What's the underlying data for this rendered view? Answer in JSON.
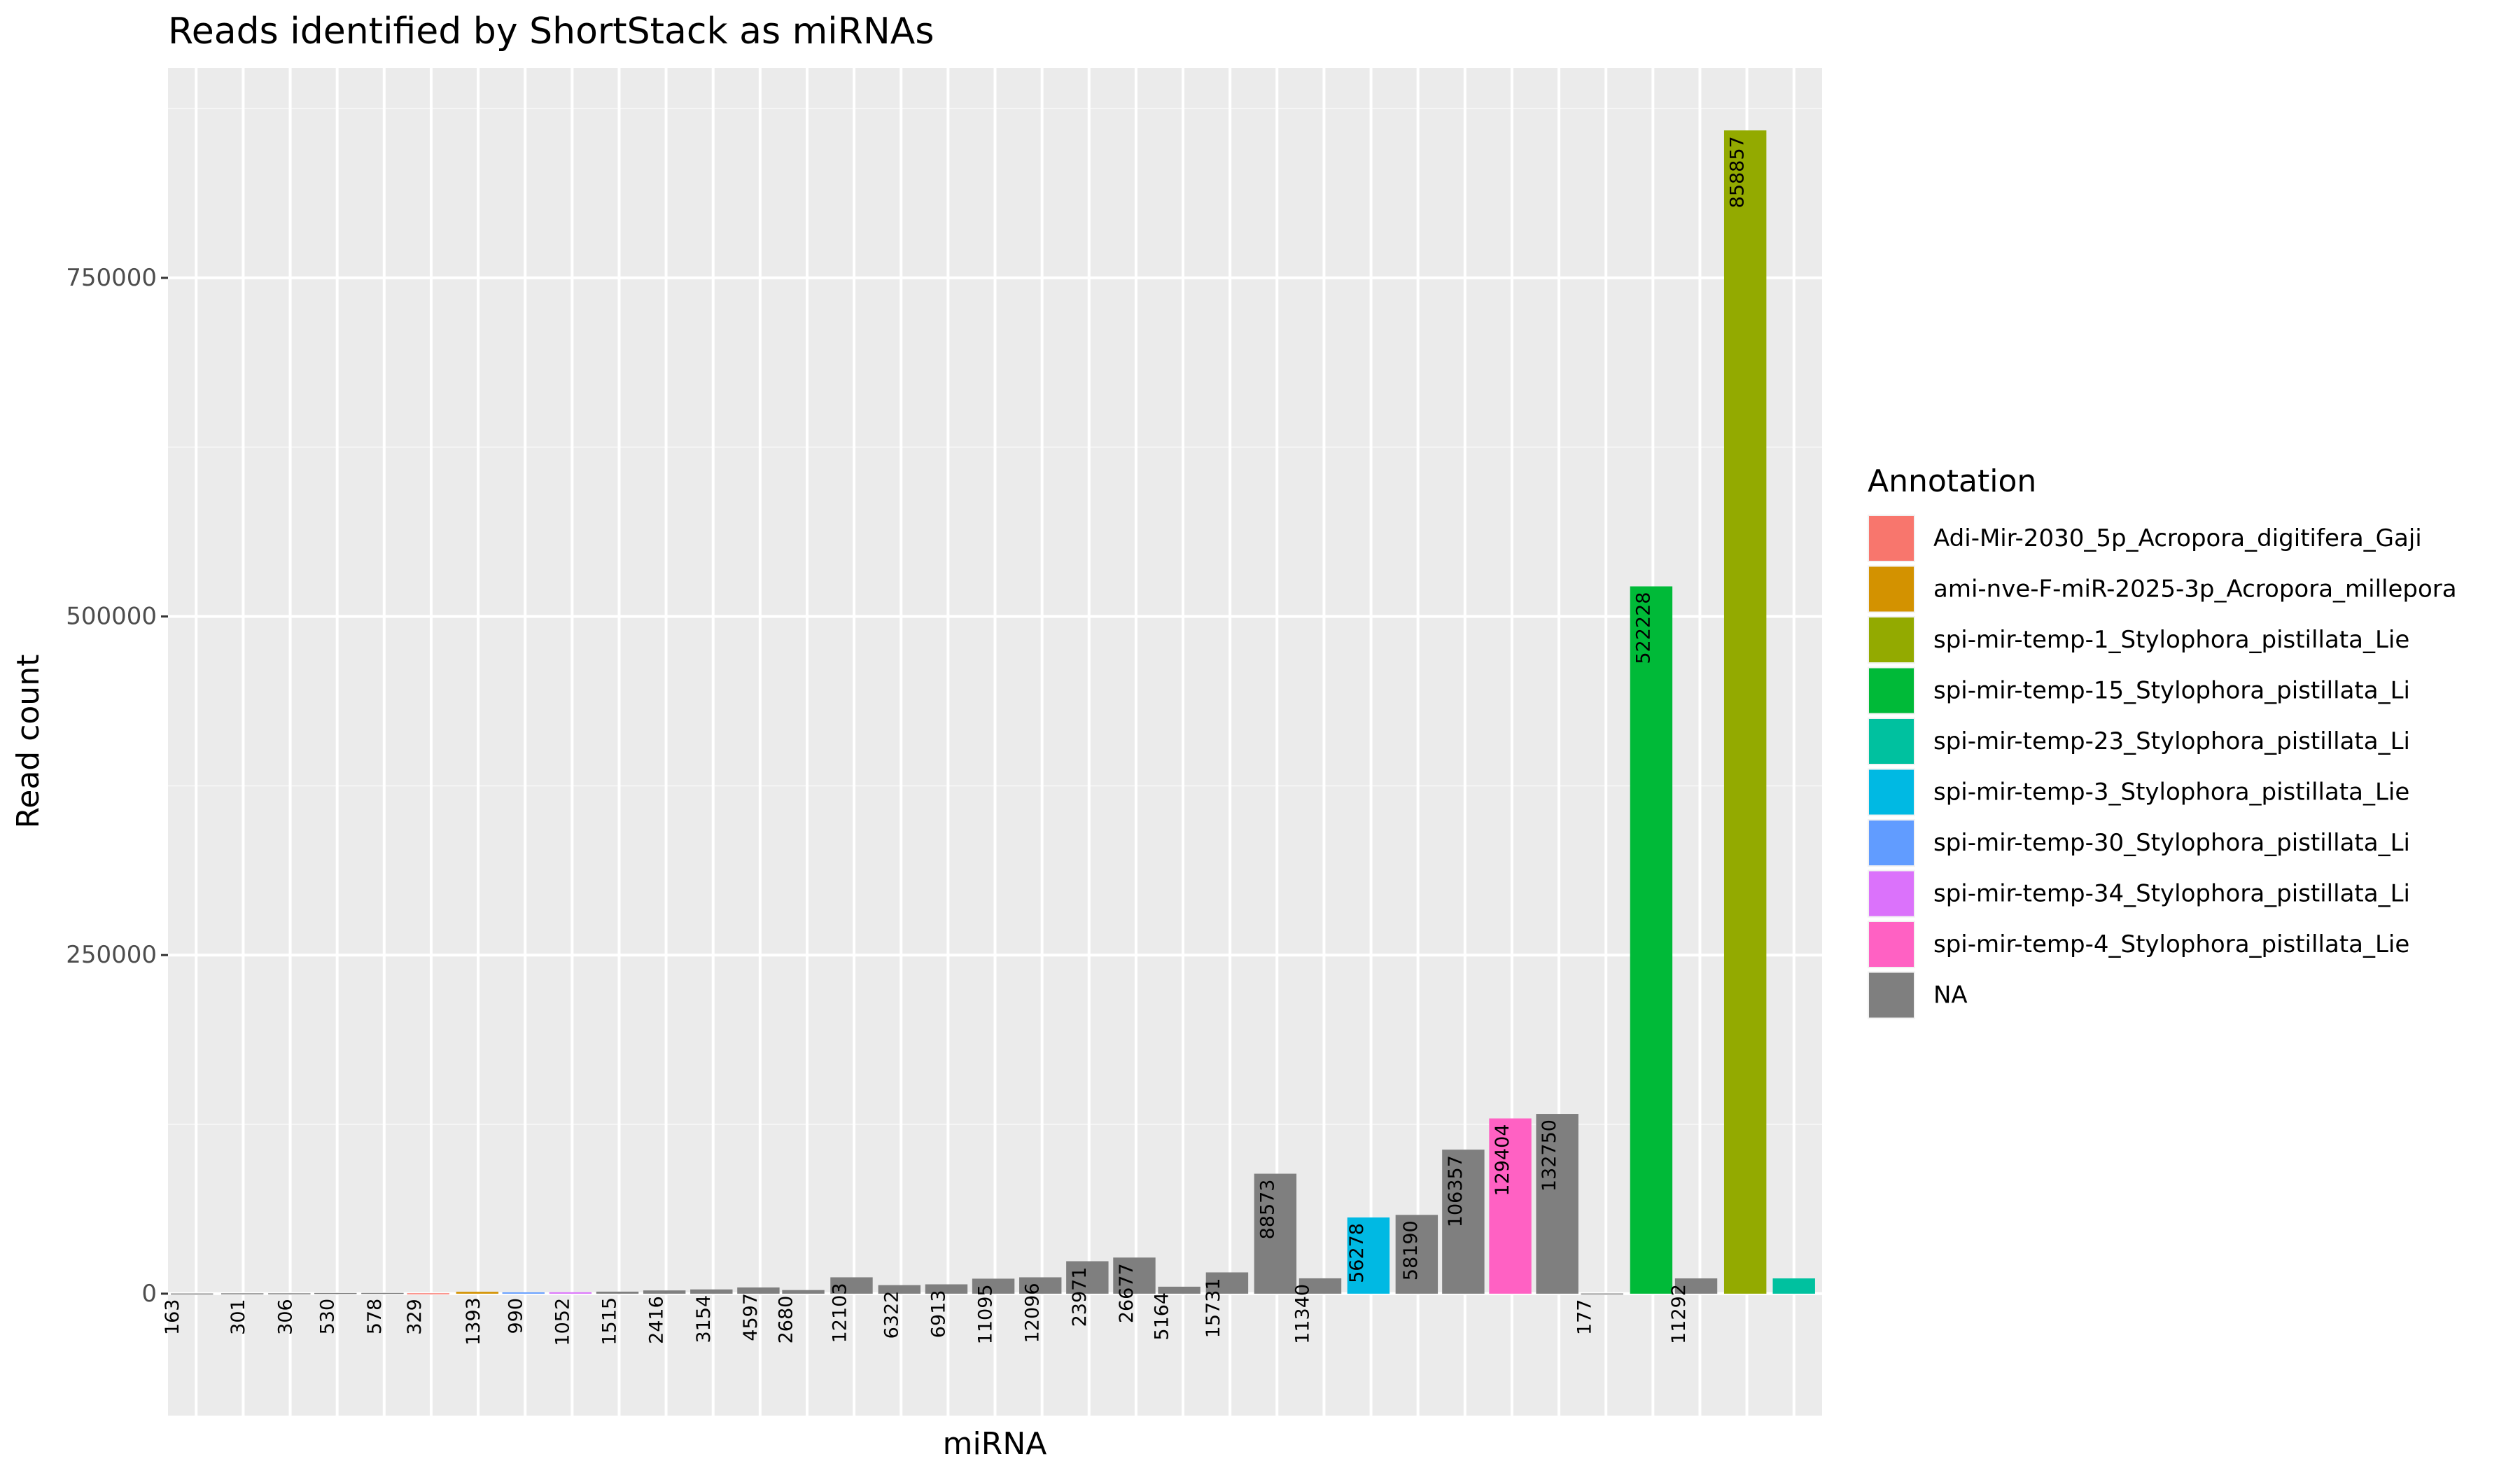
{
  "chart_data": {
    "type": "bar",
    "title": "Reads identified by ShortStack as miRNAs",
    "xlabel": "miRNA",
    "ylabel": "Read count",
    "ylim": [
      -90000,
      905000
    ],
    "yticks": [
      0,
      250000,
      500000,
      750000
    ],
    "ytick_labels": [
      "0",
      "250000",
      "500000",
      "750000"
    ],
    "legend": {
      "title": "Annotation",
      "position": "right",
      "entries": [
        {
          "name": "Adi-Mir-2030_5p_Acropora_digitifera_Gaji",
          "color": "#F8766D"
        },
        {
          "name": "ami-nve-F-miR-2025-3p_Acropora_millepora",
          "color": "#D39200"
        },
        {
          "name": "spi-mir-temp-1_Stylophora_pistillata_Lie",
          "color": "#93AA00"
        },
        {
          "name": "spi-mir-temp-15_Stylophora_pistillata_Li",
          "color": "#00BA38"
        },
        {
          "name": "spi-mir-temp-23_Stylophora_pistillata_Li",
          "color": "#00C19F"
        },
        {
          "name": "spi-mir-temp-3_Stylophora_pistillata_Lie",
          "color": "#00B9E3"
        },
        {
          "name": "spi-mir-temp-30_Stylophora_pistillata_Li",
          "color": "#619CFF"
        },
        {
          "name": "spi-mir-temp-34_Stylophora_pistillata_Li",
          "color": "#DB72FB"
        },
        {
          "name": "spi-mir-temp-4_Stylophora_pistillata_Lie",
          "color": "#FF61C3"
        },
        {
          "name": "NA",
          "color": "#7F7F7F"
        }
      ]
    },
    "bars": [
      {
        "value": 163,
        "label": "163",
        "annotation": "NA",
        "offset": -0.5
      },
      {
        "value": 301,
        "label": "301",
        "annotation": "NA",
        "offset": -0.1
      },
      {
        "value": 306,
        "label": "306",
        "annotation": "NA",
        "offset": -0.1
      },
      {
        "value": 530,
        "label": "530",
        "annotation": "NA",
        "offset": -0.2
      },
      {
        "value": 578,
        "label": "578",
        "annotation": "NA",
        "offset": -0.2
      },
      {
        "value": 329,
        "label": "329",
        "annotation": "Adi-Mir-2030_5p_Acropora_digitifera_Gaji",
        "offset": -0.35
      },
      {
        "value": 1393,
        "label": "1393",
        "annotation": "ami-nve-F-miR-2025-3p_Acropora_millepora",
        "offset": -0.1
      },
      {
        "value": 990,
        "label": "990",
        "annotation": "spi-mir-temp-30_Stylophora_pistillata_Li",
        "offset": -0.2
      },
      {
        "value": 1052,
        "label": "1052",
        "annotation": "spi-mir-temp-34_Stylophora_pistillata_Li",
        "offset": -0.2
      },
      {
        "value": 1515,
        "label": "1515",
        "annotation": "NA",
        "offset": -0.2
      },
      {
        "value": 2416,
        "label": "2416",
        "annotation": "NA",
        "offset": -0.2
      },
      {
        "value": 3154,
        "label": "3154",
        "annotation": "NA",
        "offset": -0.2
      },
      {
        "value": 4597,
        "label": "4597",
        "annotation": "NA",
        "offset": -0.2
      },
      {
        "value": 2680,
        "label": "2680",
        "annotation": "NA",
        "offset": -0.45
      },
      {
        "value": 12103,
        "label": "12103",
        "annotation": "NA",
        "offset": -0.3
      },
      {
        "value": 6322,
        "label": "6322",
        "annotation": "NA",
        "offset": -0.2
      },
      {
        "value": 6913,
        "label": "6913",
        "annotation": "NA",
        "offset": -0.2
      },
      {
        "value": 11095,
        "label": "11095",
        "annotation": "NA",
        "offset": -0.2
      },
      {
        "value": 12096,
        "label": "12096",
        "annotation": "NA",
        "offset": -0.2
      },
      {
        "value": 23971,
        "label": "23971",
        "annotation": "NA",
        "offset": -0.2
      },
      {
        "value": 26677,
        "label": "26677",
        "annotation": "NA",
        "offset": -0.2
      },
      {
        "value": 5164,
        "label": "5164",
        "annotation": "NA",
        "offset": -0.45
      },
      {
        "value": 15731,
        "label": "15731",
        "annotation": "NA",
        "offset": -0.35
      },
      {
        "value": 88573,
        "label": "88573",
        "annotation": "NA",
        "offset": -0.2
      },
      {
        "value": 11340,
        "label": "11340",
        "annotation": "NA",
        "offset": -0.45
      },
      {
        "value": 56278,
        "label": "56278",
        "annotation": "spi-mir-temp-3_Stylophora_pistillata_Lie",
        "offset": -0.3
      },
      {
        "value": 58190,
        "label": "58190",
        "annotation": "NA",
        "offset": -0.15
      },
      {
        "value": 106357,
        "label": "106357",
        "annotation": "NA",
        "offset": -0.2
      },
      {
        "value": 129404,
        "label": "129404",
        "annotation": "spi-mir-temp-4_Stylophora_pistillata_Lie",
        "offset": -0.2
      },
      {
        "value": 132750,
        "label": "132750",
        "annotation": "NA",
        "offset": -0.2
      },
      {
        "value": 177,
        "label": "177",
        "annotation": "NA",
        "offset": -0.45
      },
      {
        "value": 522228,
        "label": "522228",
        "annotation": "spi-mir-temp-15_Stylophora_pistillata_Li",
        "offset": -0.2
      },
      {
        "value": 11292,
        "label": "11292",
        "annotation": "NA",
        "offset": -0.45
      },
      {
        "value": 858857,
        "label": "858857",
        "annotation": "spi-mir-temp-1_Stylophora_pistillata_Lie",
        "offset": -0.2
      },
      {
        "value": 11292,
        "label": "",
        "annotation": "spi-mir-temp-23_Stylophora_pistillata_Li",
        "offset": 0
      }
    ]
  }
}
